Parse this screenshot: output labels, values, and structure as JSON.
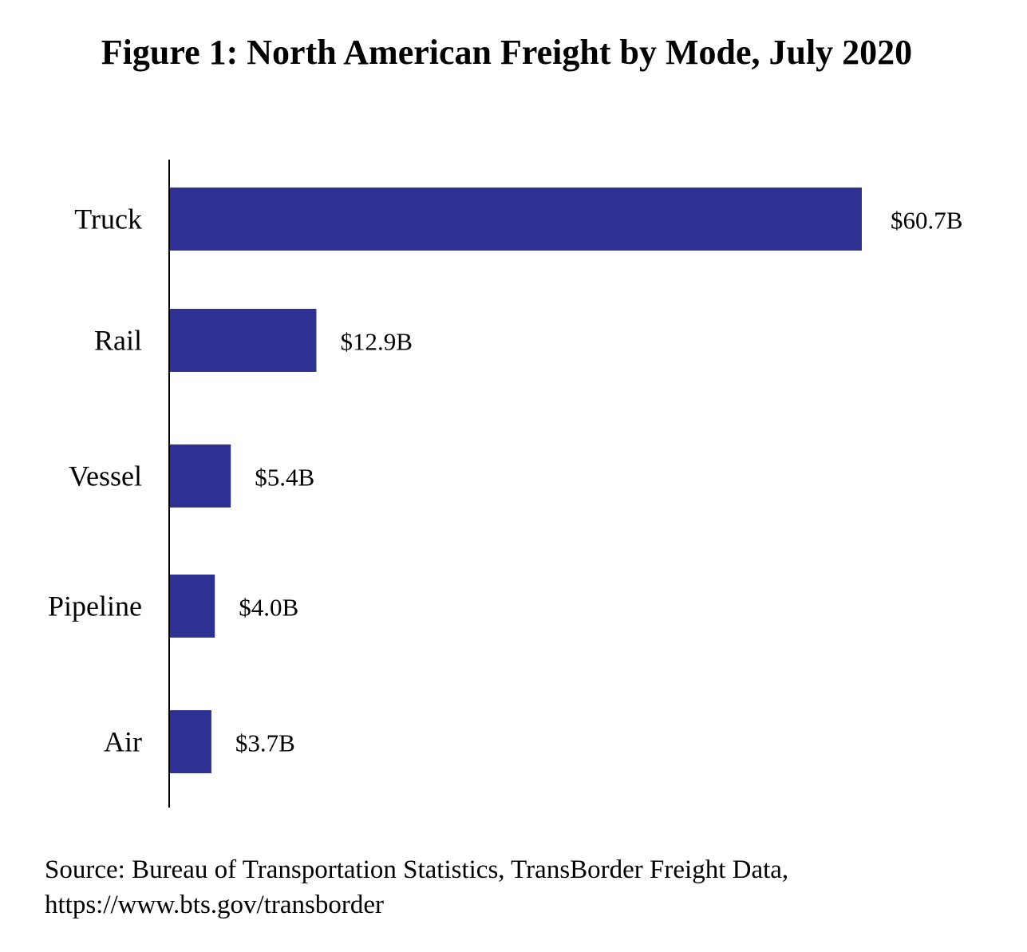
{
  "chart_data": {
    "type": "bar",
    "orientation": "horizontal",
    "title": "Figure 1: North American Freight by Mode, July 2020",
    "categories": [
      "Truck",
      "Rail",
      "Vessel",
      "Pipeline",
      "Air"
    ],
    "values": [
      60.7,
      12.9,
      5.4,
      4.0,
      3.7
    ],
    "data_labels": [
      "$60.7B",
      "$12.9B",
      "$5.4B",
      "$4.0B",
      "$3.7B"
    ],
    "unit": "billion USD",
    "xlabel": "",
    "ylabel": "",
    "grid": false,
    "legend": "none",
    "bar_color": "#2E3192"
  },
  "source": {
    "line1": "Source: Bureau of Transportation Statistics, TransBorder Freight Data,",
    "line2": "https://www.bts.gov/transborder"
  }
}
